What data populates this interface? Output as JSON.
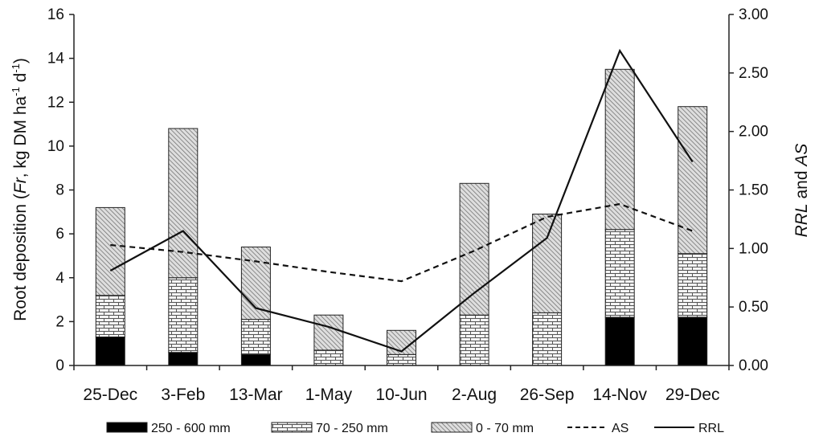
{
  "chart_data": {
    "type": "bar",
    "stacked": true,
    "categories": [
      "25-Dec",
      "3-Feb",
      "13-Mar",
      "1-May",
      "10-Jun",
      "2-Aug",
      "26-Sep",
      "14-Nov",
      "29-Dec"
    ],
    "series": [
      {
        "name": "250 - 600 mm",
        "axis": "left",
        "type": "bar",
        "fill": "solid-black",
        "values": [
          1.3,
          0.6,
          0.5,
          0.0,
          0.0,
          0.0,
          0.0,
          2.2,
          2.2
        ]
      },
      {
        "name": "70 - 250 mm",
        "axis": "left",
        "type": "bar",
        "fill": "brick-pattern",
        "values": [
          1.9,
          3.4,
          1.6,
          0.7,
          0.5,
          2.3,
          2.4,
          4.0,
          2.9
        ]
      },
      {
        "name": "0 - 70 mm",
        "axis": "left",
        "type": "bar",
        "fill": "diagonal-hatch",
        "values": [
          4.0,
          6.8,
          3.3,
          1.6,
          1.1,
          6.0,
          4.5,
          7.3,
          6.7
        ]
      },
      {
        "name": "AS",
        "axis": "right",
        "type": "line",
        "style": "dashed",
        "values": [
          1.03,
          0.97,
          0.89,
          0.8,
          0.72,
          0.98,
          1.27,
          1.38,
          1.15
        ]
      },
      {
        "name": "RRL",
        "axis": "right",
        "type": "line",
        "style": "solid",
        "values": [
          0.81,
          1.15,
          0.49,
          0.33,
          0.12,
          0.62,
          1.09,
          2.69,
          1.74
        ]
      }
    ],
    "ylabel_left": {
      "prefix": "Root deposition (",
      "fr": "Fr",
      "unit": ", kg DM ha",
      "sup1": "-1",
      "d": " d",
      "sup2": "-1",
      "close": ")"
    },
    "ylabel_right": {
      "a": "RRL",
      "mid": " and ",
      "b": "AS"
    },
    "ylim_left": [
      0,
      16
    ],
    "ylim_right": [
      0,
      3
    ],
    "yticks_left": [
      "0",
      "2",
      "4",
      "6",
      "8",
      "10",
      "12",
      "14",
      "16"
    ],
    "yticks_right": [
      "0.00",
      "0.50",
      "1.00",
      "1.50",
      "2.00",
      "2.50",
      "3.00"
    ],
    "grid": false,
    "legend_position": "bottom",
    "colors": {
      "bar_fill": "#000000",
      "brick_bg": "#f4f4f4",
      "hatch_bg": "#dedede",
      "line": "#111111"
    }
  }
}
